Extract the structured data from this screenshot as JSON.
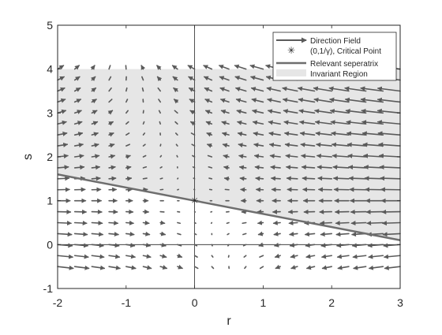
{
  "chart_data": {
    "type": "quiver",
    "title": "",
    "xlabel": "r",
    "ylabel": "s",
    "xlim": [
      -2,
      3
    ],
    "ylim": [
      -1,
      5
    ],
    "xticks": [
      -2,
      -1,
      0,
      1,
      2,
      3
    ],
    "yticks": [
      -1,
      0,
      1,
      2,
      3,
      4,
      5
    ],
    "xtick_labels": [
      "-2",
      "-1",
      "0",
      "1",
      "2",
      "3"
    ],
    "ytick_labels": [
      "-1",
      "0",
      "1",
      "2",
      "3",
      "4",
      "5"
    ],
    "grid": false,
    "box": true,
    "reference_lines": {
      "x": 0,
      "y": 0
    },
    "direction_field": {
      "x_start": -2,
      "x_step": 0.25,
      "x_count": 21,
      "y_start": -0.5,
      "y_step": 0.25,
      "y_count": 19,
      "critical_point_r": 0,
      "critical_point_s": 1,
      "rotation_weight": 0.35,
      "arrow_scale": 0.09,
      "max_arrow_length": 0.33
    },
    "series": [
      {
        "name": "Direction Field",
        "kind": "quiver",
        "color": "#5a5a5a"
      },
      {
        "name": "(0,1/γ), Critical Point",
        "kind": "marker",
        "marker": "*",
        "points": [
          [
            0,
            1
          ]
        ],
        "color": "#7a7a7a"
      },
      {
        "name": "Relevant seperatrix",
        "kind": "line",
        "x": [
          -2,
          3
        ],
        "y": [
          1.6,
          0.1
        ],
        "color": "#6e6e6e"
      },
      {
        "name": "Invariant Region",
        "kind": "area",
        "polygon": [
          [
            -2,
            4
          ],
          [
            3,
            4
          ],
          [
            3,
            0.1
          ],
          [
            -2,
            1.6
          ]
        ],
        "color": "#e6e6e6"
      }
    ],
    "legend": {
      "position": "top-right",
      "entries": [
        "Direction Field",
        "(0,1/γ), Critical Point",
        "Relevant seperatrix",
        "Invariant Region"
      ]
    },
    "colors": {
      "axes": "#262626",
      "quiver": "#5a5a5a",
      "separatrix": "#6e6e6e",
      "region": "#e6e6e6",
      "marker": "#7a7a7a"
    }
  }
}
